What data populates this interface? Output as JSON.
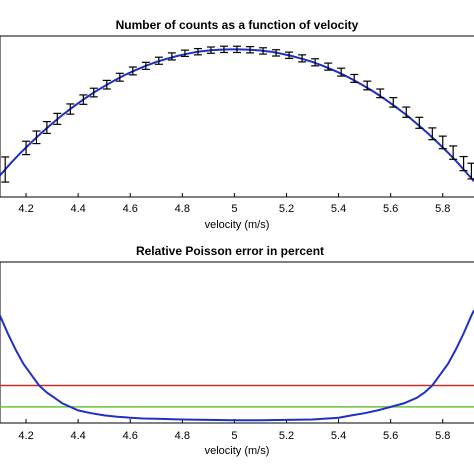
{
  "colors": {
    "curve": "#1f2fc4",
    "errorbar": "#000000",
    "threshold_red": "#c0302a",
    "threshold_green": "#6fc23a",
    "axes": "#000000"
  },
  "chart_data": [
    {
      "type": "line",
      "title": "Number of counts as a function of velocity",
      "xlabel": "velocity (m/s)",
      "ylabel": "",
      "xlim": [
        4.1,
        5.92
      ],
      "ylim": [
        0.62,
        1.03
      ],
      "x_ticks": [
        "4.2",
        "4.4",
        "4.6",
        "4.8",
        "5",
        "5.2",
        "5.4",
        "5.6",
        "5.8"
      ],
      "grid": false,
      "series": [
        {
          "kind": "curve",
          "x": [
            4.1,
            4.14,
            4.18,
            4.22,
            4.26,
            4.3,
            4.34,
            4.38,
            4.42,
            4.46,
            4.5,
            4.54,
            4.58,
            4.62,
            4.66,
            4.7,
            4.74,
            4.78,
            4.82,
            4.86,
            4.9,
            4.94,
            4.98,
            5.02,
            5.06,
            5.1,
            5.14,
            5.18,
            5.22,
            5.26,
            5.3,
            5.34,
            5.38,
            5.42,
            5.46,
            5.5,
            5.54,
            5.58,
            5.62,
            5.66,
            5.7,
            5.74,
            5.78,
            5.82,
            5.86,
            5.9,
            5.92
          ],
          "y": [
            0.675,
            0.705,
            0.733,
            0.759,
            0.784,
            0.807,
            0.829,
            0.849,
            0.868,
            0.886,
            0.902,
            0.917,
            0.931,
            0.943,
            0.954,
            0.964,
            0.972,
            0.979,
            0.985,
            0.99,
            0.993,
            0.995,
            0.996,
            0.996,
            0.995,
            0.993,
            0.99,
            0.985,
            0.979,
            0.972,
            0.964,
            0.954,
            0.943,
            0.931,
            0.917,
            0.902,
            0.886,
            0.868,
            0.849,
            0.829,
            0.807,
            0.784,
            0.759,
            0.733,
            0.705,
            0.675,
            0.66
          ]
        },
        {
          "kind": "errorbars",
          "x": [
            4.12,
            4.2,
            4.24,
            4.28,
            4.32,
            4.37,
            4.42,
            4.46,
            4.51,
            4.56,
            4.61,
            4.66,
            4.71,
            4.76,
            4.81,
            4.86,
            4.91,
            4.96,
            5.01,
            5.06,
            5.11,
            5.16,
            5.21,
            5.26,
            5.31,
            5.36,
            5.41,
            5.46,
            5.51,
            5.56,
            5.61,
            5.66,
            5.71,
            5.76,
            5.8,
            5.84,
            5.88,
            5.91
          ],
          "y": [
            0.69,
            0.745,
            0.772,
            0.797,
            0.819,
            0.844,
            0.868,
            0.886,
            0.906,
            0.925,
            0.941,
            0.954,
            0.967,
            0.978,
            0.986,
            0.99,
            0.994,
            0.996,
            0.996,
            0.995,
            0.992,
            0.987,
            0.981,
            0.973,
            0.963,
            0.952,
            0.938,
            0.922,
            0.904,
            0.884,
            0.861,
            0.836,
            0.809,
            0.781,
            0.759,
            0.733,
            0.705,
            0.686
          ],
          "err": [
            0.032,
            0.017,
            0.016,
            0.015,
            0.014,
            0.013,
            0.012,
            0.011,
            0.011,
            0.01,
            0.01,
            0.009,
            0.009,
            0.009,
            0.008,
            0.008,
            0.008,
            0.008,
            0.008,
            0.008,
            0.008,
            0.008,
            0.008,
            0.009,
            0.009,
            0.009,
            0.01,
            0.01,
            0.011,
            0.011,
            0.012,
            0.013,
            0.014,
            0.015,
            0.016,
            0.017,
            0.018,
            0.02
          ]
        }
      ]
    },
    {
      "type": "line",
      "title": "Relative Poisson error in percent",
      "xlabel": "velocity (m/s)",
      "ylabel": "",
      "xlim": [
        4.1,
        5.92
      ],
      "ylim": [
        0,
        1
      ],
      "x_ticks": [
        "4.2",
        "4.4",
        "4.6",
        "4.8",
        "5",
        "5.2",
        "5.4",
        "5.6",
        "5.8"
      ],
      "grid": false,
      "series": [
        {
          "kind": "curve",
          "x": [
            4.1,
            4.13,
            4.16,
            4.19,
            4.22,
            4.25,
            4.28,
            4.31,
            4.34,
            4.37,
            4.4,
            4.45,
            4.5,
            4.55,
            4.6,
            4.65,
            4.7,
            4.8,
            4.9,
            5.0,
            5.1,
            5.2,
            5.3,
            5.4,
            5.45,
            5.5,
            5.55,
            5.6,
            5.65,
            5.7,
            5.73,
            5.76,
            5.79,
            5.82,
            5.85,
            5.88,
            5.91,
            5.92
          ],
          "y": [
            0.667,
            0.556,
            0.456,
            0.367,
            0.3,
            0.233,
            0.189,
            0.156,
            0.122,
            0.1,
            0.078,
            0.061,
            0.047,
            0.039,
            0.033,
            0.028,
            0.026,
            0.022,
            0.019,
            0.017,
            0.017,
            0.019,
            0.022,
            0.033,
            0.047,
            0.061,
            0.078,
            0.1,
            0.122,
            0.156,
            0.189,
            0.233,
            0.3,
            0.367,
            0.456,
            0.556,
            0.667,
            0.7
          ]
        },
        {
          "kind": "hline",
          "color": "threshold_red",
          "y": 0.233
        },
        {
          "kind": "hline",
          "color": "threshold_green",
          "y": 0.1
        }
      ]
    }
  ]
}
